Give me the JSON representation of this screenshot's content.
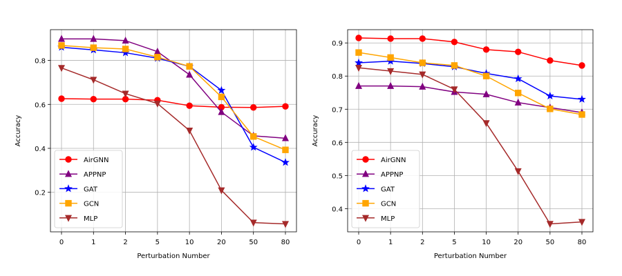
{
  "chart_data": [
    {
      "type": "line",
      "xlabel": "Perturbation Number",
      "ylabel": "Accuracy",
      "categories": [
        "0",
        "1",
        "2",
        "5",
        "10",
        "20",
        "50",
        "80"
      ],
      "ylim": [
        0.02,
        0.94
      ],
      "yticks": [
        "0.2",
        "0.4",
        "0.6",
        "0.8"
      ],
      "ytick_values": [
        0.2,
        0.4,
        0.6,
        0.8
      ],
      "grid": true,
      "legend_position": "lower-left",
      "series": [
        {
          "name": "AirGNN",
          "color": "#ff0000",
          "marker": "circle",
          "values": [
            0.626,
            0.624,
            0.624,
            0.619,
            0.594,
            0.587,
            0.586,
            0.591
          ]
        },
        {
          "name": "APPNP",
          "color": "#800080",
          "marker": "triangle-up",
          "values": [
            0.898,
            0.898,
            0.89,
            0.84,
            0.735,
            0.565,
            0.457,
            0.446
          ]
        },
        {
          "name": "GAT",
          "color": "#0000ff",
          "marker": "star",
          "values": [
            0.86,
            0.848,
            0.835,
            0.81,
            0.773,
            0.664,
            0.405,
            0.336
          ]
        },
        {
          "name": "GCN",
          "color": "#ffa500",
          "marker": "square",
          "values": [
            0.868,
            0.858,
            0.852,
            0.815,
            0.773,
            0.634,
            0.454,
            0.393
          ]
        },
        {
          "name": "MLP",
          "color": "#a52a2a",
          "marker": "triangle-down",
          "values": [
            0.766,
            0.712,
            0.649,
            0.604,
            0.481,
            0.209,
            0.062,
            0.056
          ]
        }
      ]
    },
    {
      "type": "line",
      "xlabel": "Perturbation Number",
      "ylabel": "Accuracy",
      "categories": [
        "0",
        "1",
        "2",
        "5",
        "10",
        "20",
        "50",
        "80"
      ],
      "ylim": [
        0.33,
        0.94
      ],
      "yticks": [
        "0.4",
        "0.5",
        "0.6",
        "0.7",
        "0.8",
        "0.9"
      ],
      "ytick_values": [
        0.4,
        0.5,
        0.6,
        0.7,
        0.8,
        0.9
      ],
      "grid": true,
      "legend_position": "lower-left",
      "series": [
        {
          "name": "AirGNN",
          "color": "#ff0000",
          "marker": "circle",
          "values": [
            0.915,
            0.913,
            0.913,
            0.903,
            0.88,
            0.873,
            0.847,
            0.832
          ]
        },
        {
          "name": "APPNP",
          "color": "#800080",
          "marker": "triangle-up",
          "values": [
            0.77,
            0.77,
            0.768,
            0.752,
            0.745,
            0.72,
            0.705,
            0.69
          ]
        },
        {
          "name": "GAT",
          "color": "#0000ff",
          "marker": "star",
          "values": [
            0.84,
            0.845,
            0.838,
            0.828,
            0.808,
            0.792,
            0.74,
            0.73
          ]
        },
        {
          "name": "GCN",
          "color": "#ffa500",
          "marker": "square",
          "values": [
            0.871,
            0.856,
            0.84,
            0.832,
            0.8,
            0.749,
            0.701,
            0.684
          ]
        },
        {
          "name": "MLP",
          "color": "#a52a2a",
          "marker": "triangle-down",
          "values": [
            0.825,
            0.815,
            0.805,
            0.76,
            0.658,
            0.513,
            0.354,
            0.36
          ]
        }
      ]
    }
  ]
}
